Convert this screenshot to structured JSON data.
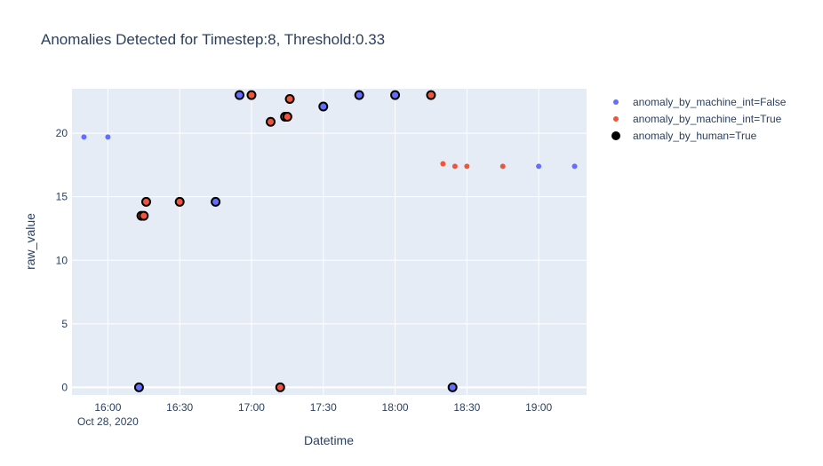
{
  "chart_data": {
    "type": "scatter",
    "title": "Anomalies Detected for Timestep:8, Threshold:0.33",
    "xlabel": "Datetime",
    "ylabel": "raw_value",
    "x_range": [
      "15:45",
      "19:20"
    ],
    "ylim": [
      -0.6,
      23.5
    ],
    "x_ticks": [
      {
        "time": "16:00",
        "label": "16:00",
        "sublabel": "Oct 28, 2020"
      },
      {
        "time": "16:30",
        "label": "16:30",
        "sublabel": ""
      },
      {
        "time": "17:00",
        "label": "17:00",
        "sublabel": ""
      },
      {
        "time": "17:30",
        "label": "17:30",
        "sublabel": ""
      },
      {
        "time": "18:00",
        "label": "18:00",
        "sublabel": ""
      },
      {
        "time": "18:30",
        "label": "18:30",
        "sublabel": ""
      },
      {
        "time": "19:00",
        "label": "19:00",
        "sublabel": ""
      }
    ],
    "y_ticks": [
      0,
      5,
      10,
      15,
      20
    ],
    "grid": true,
    "legend_position": "top-right",
    "series": [
      {
        "name": "anomaly_by_machine_int=False",
        "color": "#636efa",
        "points": [
          {
            "x": "15:50",
            "y": 19.7
          },
          {
            "x": "16:00",
            "y": 19.7
          },
          {
            "x": "16:13",
            "y": 0
          },
          {
            "x": "16:45",
            "y": 14.6
          },
          {
            "x": "16:55",
            "y": 23
          },
          {
            "x": "17:30",
            "y": 22.1
          },
          {
            "x": "17:45",
            "y": 23
          },
          {
            "x": "18:00",
            "y": 23
          },
          {
            "x": "18:24",
            "y": 0
          },
          {
            "x": "19:00",
            "y": 17.4
          },
          {
            "x": "19:15",
            "y": 17.4
          }
        ]
      },
      {
        "name": "anomaly_by_machine_int=True",
        "color": "#ef553b",
        "points": [
          {
            "x": "16:14",
            "y": 13.5
          },
          {
            "x": "16:15",
            "y": 13.5
          },
          {
            "x": "16:16",
            "y": 14.6
          },
          {
            "x": "16:30",
            "y": 14.6
          },
          {
            "x": "17:00",
            "y": 23
          },
          {
            "x": "17:08",
            "y": 20.9
          },
          {
            "x": "17:12",
            "y": 0
          },
          {
            "x": "17:14",
            "y": 21.3
          },
          {
            "x": "17:15",
            "y": 21.3
          },
          {
            "x": "17:16",
            "y": 22.7
          },
          {
            "x": "18:15",
            "y": 23
          },
          {
            "x": "18:20",
            "y": 17.6
          },
          {
            "x": "18:25",
            "y": 17.4
          },
          {
            "x": "18:30",
            "y": 17.4
          },
          {
            "x": "18:45",
            "y": 17.4
          }
        ]
      },
      {
        "name": "anomaly_by_human=True",
        "color": "#000000",
        "points": [
          {
            "x": "16:13",
            "y": 0
          },
          {
            "x": "16:14",
            "y": 13.5
          },
          {
            "x": "16:15",
            "y": 13.5
          },
          {
            "x": "16:16",
            "y": 14.6
          },
          {
            "x": "16:30",
            "y": 14.6
          },
          {
            "x": "16:45",
            "y": 14.6
          },
          {
            "x": "16:55",
            "y": 23
          },
          {
            "x": "17:00",
            "y": 23
          },
          {
            "x": "17:08",
            "y": 20.9
          },
          {
            "x": "17:12",
            "y": 0
          },
          {
            "x": "17:14",
            "y": 21.3
          },
          {
            "x": "17:15",
            "y": 21.3
          },
          {
            "x": "17:16",
            "y": 22.7
          },
          {
            "x": "17:30",
            "y": 22.1
          },
          {
            "x": "17:45",
            "y": 23
          },
          {
            "x": "18:00",
            "y": 23
          },
          {
            "x": "18:15",
            "y": 23
          },
          {
            "x": "18:24",
            "y": 0
          }
        ]
      }
    ]
  }
}
